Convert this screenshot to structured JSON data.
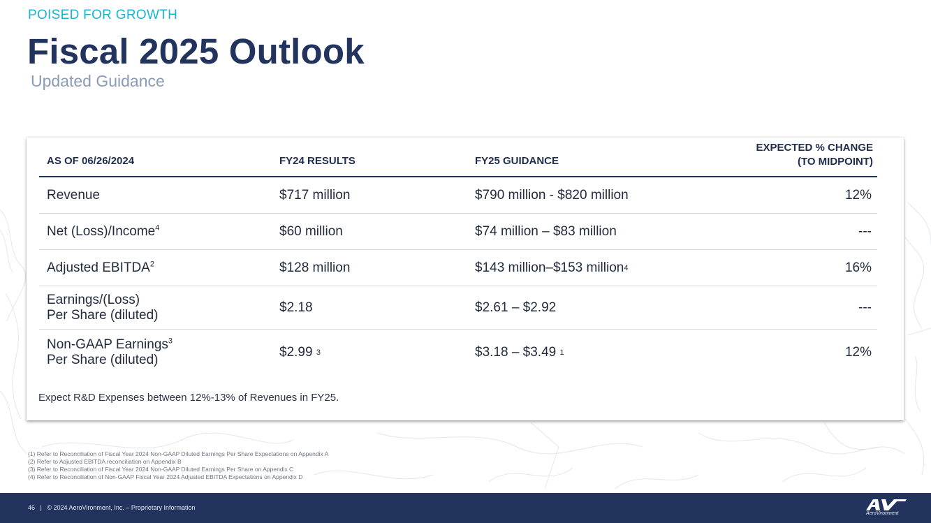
{
  "header": {
    "eyebrow": "POISED FOR GROWTH",
    "title": "Fiscal 2025 Outlook",
    "subtitle": "Updated Guidance"
  },
  "table": {
    "columns": {
      "as_of": "AS OF 06/26/2024",
      "fy24": "FY24 RESULTS",
      "fy25": "FY25 GUIDANCE",
      "change_line1": "EXPECTED % CHANGE",
      "change_line2": "(TO MIDPOINT)"
    },
    "rows": [
      {
        "label": "Revenue",
        "label_sup": "",
        "label_line2": "",
        "fy24": "$717 million",
        "fy24_sup": "",
        "fy25": "$790 million - $820 million",
        "fy25_sup": "",
        "change": "12%"
      },
      {
        "label": "Net (Loss)/Income",
        "label_sup": "4",
        "label_line2": "",
        "fy24": "$60 million",
        "fy24_sup": "",
        "fy25": "$74 million – $83 million",
        "fy25_sup": "",
        "change": "---"
      },
      {
        "label": "Adjusted EBITDA",
        "label_sup": "2",
        "label_line2": "",
        "fy24": "$128 million",
        "fy24_sup": "",
        "fy25": "$143 million–$153 million",
        "fy25_sup": "4",
        "change": "16%"
      },
      {
        "label": "Earnings/(Loss)",
        "label_sup": "",
        "label_line2": "Per Share (diluted)",
        "fy24": "$2.18",
        "fy24_sup": "",
        "fy25": "$2.61 – $2.92",
        "fy25_sup": "",
        "change": "---"
      },
      {
        "label": "Non-GAAP Earnings",
        "label_sup": "3",
        "label_line2": "Per Share (diluted)",
        "fy24": "$2.99 ",
        "fy24_sup": "3",
        "fy25": "$3.18 – $3.49 ",
        "fy25_sup": "1",
        "change": "12%"
      }
    ],
    "note": "Expect R&D Expenses between 12%-13% of Revenues in FY25."
  },
  "footnotes": [
    "(1) Refer to Reconciliation of Fiscal Year 2024 Non-GAAP Diluted Earnings Per Share Expectations on Appendix A",
    "(2) Refer to Adjusted EBITDA reconciliation on Appendix B",
    "(3) Refer to Reconciliation of Fiscal Year 2024 Non-GAAP Diluted Earnings Per Share on Appendix C",
    "(4) Refer to Reconciliation of Non-GAAP Fiscal Year 2024 Adjusted EBITDA Expectations on Appendix D"
  ],
  "footer": {
    "page_number": "46",
    "separator": "|",
    "copyright": "© 2024 AeroVironment, Inc. – Proprietary Information",
    "logo_text": "AeroVironment",
    "logo_icon": "av-logo-icon"
  },
  "colors": {
    "navy": "#22335e",
    "cyan": "#1bb4cf",
    "subtitle_gray": "#8a9bb6"
  }
}
